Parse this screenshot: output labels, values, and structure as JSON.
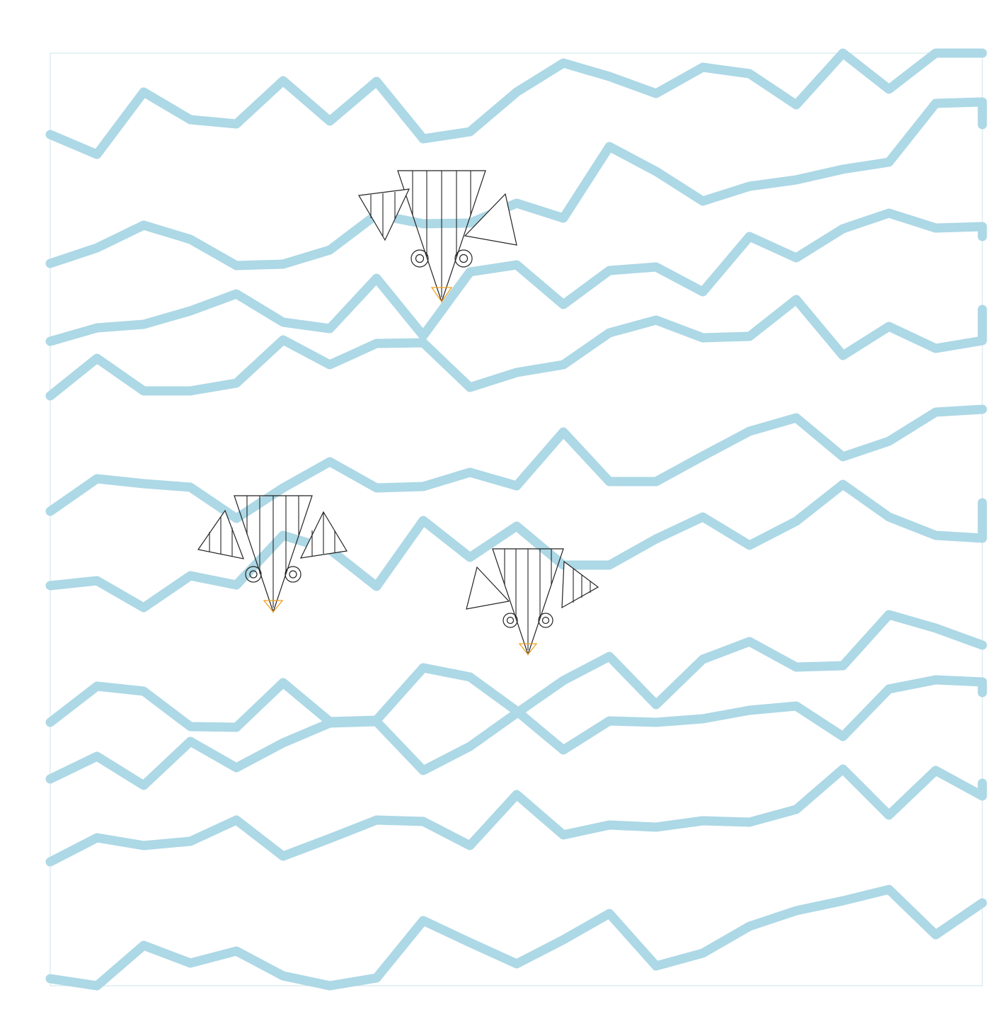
{
  "scene": {
    "background": "#ffffff",
    "frame_color": "#d6e9f1",
    "wave_color": "#add8e6",
    "ink_color": "#222222",
    "beak_color": "#f0a020",
    "wave_count": 11,
    "bird_count": 3,
    "icons": [
      "bird-icon",
      "bird-icon",
      "bird-icon"
    ]
  }
}
